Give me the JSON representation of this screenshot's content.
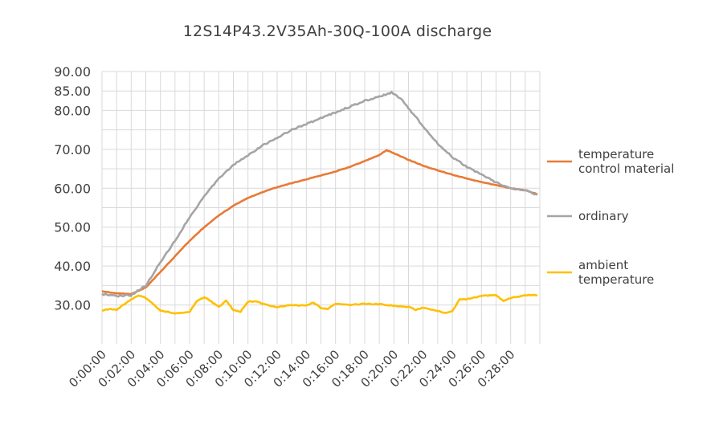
{
  "chart_data": {
    "type": "line",
    "title": "12S14P43.2V35Ah-30Q-100A discharge",
    "xlabel": "",
    "ylabel": "",
    "ylim": [
      20,
      90
    ],
    "y_ticks": [
      "30.00",
      "40.00",
      "50.00",
      "60.00",
      "70.00",
      "80.00",
      "85.00",
      "90.00"
    ],
    "x_ticks": [
      "0:00:00",
      "0:02:00",
      "0:04:00",
      "0:06:00",
      "0:08:00",
      "0:10:00",
      "0:12:00",
      "0:14:00",
      "0:16:00",
      "0:18:00",
      "0:20:00",
      "0:22:00",
      "0:24:00",
      "0:26:00",
      "0:28:00"
    ],
    "grid": true,
    "legend_position": "right",
    "series": [
      {
        "name": "temperature control material",
        "color": "#E87A35",
        "points": [
          [
            "0:00:00",
            33.5
          ],
          [
            "0:01:00",
            33.0
          ],
          [
            "0:02:00",
            32.8
          ],
          [
            "0:03:00",
            34.5
          ],
          [
            "0:04:00",
            38.5
          ],
          [
            "0:05:00",
            42.5
          ],
          [
            "0:06:00",
            46.5
          ],
          [
            "0:07:00",
            50.0
          ],
          [
            "0:08:00",
            53.0
          ],
          [
            "0:09:00",
            55.5
          ],
          [
            "0:10:00",
            57.5
          ],
          [
            "0:11:00",
            59.0
          ],
          [
            "0:12:00",
            60.3
          ],
          [
            "0:13:00",
            61.3
          ],
          [
            "0:14:00",
            62.3
          ],
          [
            "0:15:00",
            63.3
          ],
          [
            "0:16:00",
            64.3
          ],
          [
            "0:17:00",
            65.5
          ],
          [
            "0:18:00",
            67.0
          ],
          [
            "0:19:00",
            68.5
          ],
          [
            "0:19:30",
            69.8
          ],
          [
            "0:20:00",
            69.0
          ],
          [
            "0:21:00",
            67.3
          ],
          [
            "0:22:00",
            65.8
          ],
          [
            "0:23:00",
            64.6
          ],
          [
            "0:24:00",
            63.5
          ],
          [
            "0:25:00",
            62.5
          ],
          [
            "0:26:00",
            61.6
          ],
          [
            "0:27:00",
            60.8
          ],
          [
            "0:28:00",
            60.0
          ],
          [
            "0:29:00",
            59.5
          ],
          [
            "0:29:50",
            58.5
          ]
        ]
      },
      {
        "name": "ordinary",
        "color": "#A5A5A5",
        "points": [
          [
            "0:00:00",
            32.8
          ],
          [
            "0:01:00",
            32.3
          ],
          [
            "0:02:00",
            32.5
          ],
          [
            "0:03:00",
            35.0
          ],
          [
            "0:04:00",
            41.0
          ],
          [
            "0:05:00",
            46.5
          ],
          [
            "0:06:00",
            52.5
          ],
          [
            "0:07:00",
            58.0
          ],
          [
            "0:08:00",
            62.5
          ],
          [
            "0:09:00",
            66.0
          ],
          [
            "0:10:00",
            68.5
          ],
          [
            "0:11:00",
            71.0
          ],
          [
            "0:12:00",
            73.0
          ],
          [
            "0:13:00",
            75.0
          ],
          [
            "0:14:00",
            76.5
          ],
          [
            "0:15:00",
            78.0
          ],
          [
            "0:16:00",
            79.5
          ],
          [
            "0:17:00",
            81.0
          ],
          [
            "0:18:00",
            82.5
          ],
          [
            "0:19:00",
            83.5
          ],
          [
            "0:19:50",
            84.6
          ],
          [
            "0:20:30",
            83.0
          ],
          [
            "0:21:00",
            80.5
          ],
          [
            "0:22:00",
            76.0
          ],
          [
            "0:23:00",
            71.5
          ],
          [
            "0:24:00",
            68.0
          ],
          [
            "0:25:00",
            65.5
          ],
          [
            "0:26:00",
            63.5
          ],
          [
            "0:27:00",
            61.5
          ],
          [
            "0:28:00",
            60.0
          ],
          [
            "0:29:00",
            59.5
          ],
          [
            "0:29:50",
            58.3
          ]
        ]
      },
      {
        "name": "ambient temperature",
        "color": "#FFC000",
        "points": [
          [
            "0:00:00",
            28.5
          ],
          [
            "0:00:30",
            29.0
          ],
          [
            "0:01:00",
            28.7
          ],
          [
            "0:01:30",
            30.2
          ],
          [
            "0:02:00",
            31.5
          ],
          [
            "0:02:30",
            32.5
          ],
          [
            "0:03:00",
            31.8
          ],
          [
            "0:03:30",
            30.2
          ],
          [
            "0:04:00",
            28.5
          ],
          [
            "0:04:30",
            28.3
          ],
          [
            "0:05:00",
            27.8
          ],
          [
            "0:05:30",
            28.0
          ],
          [
            "0:06:00",
            28.3
          ],
          [
            "0:06:30",
            31.0
          ],
          [
            "0:07:00",
            32.0
          ],
          [
            "0:07:30",
            30.8
          ],
          [
            "0:08:00",
            29.5
          ],
          [
            "0:08:30",
            31.2
          ],
          [
            "0:09:00",
            28.6
          ],
          [
            "0:09:30",
            28.3
          ],
          [
            "0:10:00",
            30.8
          ],
          [
            "0:10:30",
            31.0
          ],
          [
            "0:11:00",
            30.3
          ],
          [
            "0:11:30",
            29.8
          ],
          [
            "0:12:00",
            29.5
          ],
          [
            "0:13:00",
            30.0
          ],
          [
            "0:14:00",
            29.8
          ],
          [
            "0:14:30",
            30.6
          ],
          [
            "0:15:00",
            29.2
          ],
          [
            "0:15:30",
            29.0
          ],
          [
            "0:16:00",
            30.3
          ],
          [
            "0:17:00",
            30.0
          ],
          [
            "0:18:00",
            30.3
          ],
          [
            "0:19:00",
            30.2
          ],
          [
            "0:19:30",
            30.0
          ],
          [
            "0:20:00",
            29.8
          ],
          [
            "0:21:00",
            29.5
          ],
          [
            "0:21:30",
            28.7
          ],
          [
            "0:22:00",
            29.3
          ],
          [
            "0:23:00",
            28.5
          ],
          [
            "0:23:30",
            28.0
          ],
          [
            "0:24:00",
            28.3
          ],
          [
            "0:24:30",
            31.5
          ],
          [
            "0:25:00",
            31.5
          ],
          [
            "0:26:00",
            32.3
          ],
          [
            "0:27:00",
            32.5
          ],
          [
            "0:27:30",
            31.0
          ],
          [
            "0:28:00",
            31.8
          ],
          [
            "0:29:00",
            32.5
          ],
          [
            "0:29:50",
            32.5
          ]
        ]
      }
    ]
  },
  "legend": {
    "items": [
      {
        "line1": "temperature",
        "line2": "control material"
      },
      {
        "line1": "ordinary",
        "line2": ""
      },
      {
        "line1": "ambient",
        "line2": "temperature"
      }
    ]
  }
}
